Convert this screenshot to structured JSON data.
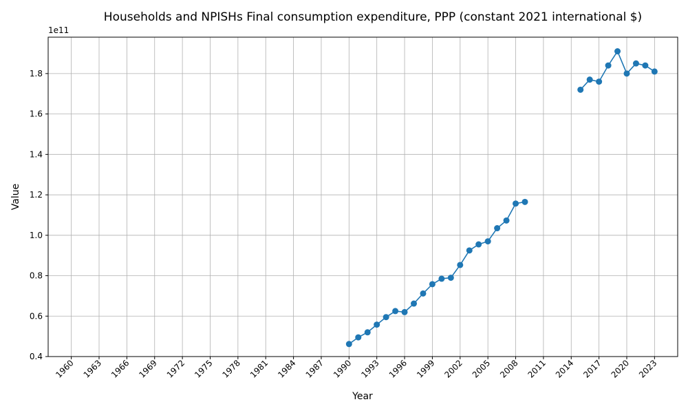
{
  "chart_data": {
    "type": "line",
    "title": "Households and NPISHs Final consumption expenditure, PPP (constant 2021 international $)",
    "xlabel": "Year",
    "ylabel": "Value",
    "y_offset_label": "1e11",
    "y_scale_factor": 100000000000.0,
    "xlim": [
      1960,
      2023
    ],
    "ylim": [
      40000000000.0,
      198000000000.0
    ],
    "grid": true,
    "x_ticks": [
      "1960",
      "1963",
      "1966",
      "1969",
      "1972",
      "1975",
      "1978",
      "1981",
      "1984",
      "1987",
      "1990",
      "1993",
      "1996",
      "1999",
      "2002",
      "2005",
      "2008",
      "2011",
      "2014",
      "2017",
      "2020",
      "2023"
    ],
    "y_ticks": [
      "0.4",
      "0.6",
      "0.8",
      "1.0",
      "1.2",
      "1.4",
      "1.6",
      "1.8"
    ],
    "colors": {
      "series": "#1f77b4",
      "grid": "#b0b0b0",
      "axis": "#000000"
    },
    "series": [
      {
        "x": [
          1990,
          1991,
          1992,
          1993,
          1994,
          1995,
          1996,
          1997,
          1998,
          1999,
          2000,
          2001,
          2002,
          2003,
          2004,
          2005,
          2006,
          2007,
          2008,
          2009,
          2010,
          2011,
          2012,
          2013,
          2014,
          2015,
          2016,
          2017,
          2018,
          2019,
          2020,
          2021,
          2022,
          2023
        ],
        "values": [
          46200000000.0,
          49500000000.0,
          52000000000.0,
          55800000000.0,
          59500000000.0,
          62500000000.0,
          62000000000.0,
          66200000000.0,
          71200000000.0,
          75800000000.0,
          78500000000.0,
          79000000000.0,
          85300000000.0,
          92500000000.0,
          95500000000.0,
          97000000000.0,
          103500000000.0,
          107300000000.0,
          115700000000.0,
          116500000000.0,
          null,
          null,
          null,
          null,
          null,
          172000000000.0,
          177000000000.0,
          176000000000.0,
          184000000000.0,
          191000000000.0,
          180000000000.0,
          185000000000.0,
          184000000000.0,
          181000000000.0
        ]
      }
    ]
  }
}
